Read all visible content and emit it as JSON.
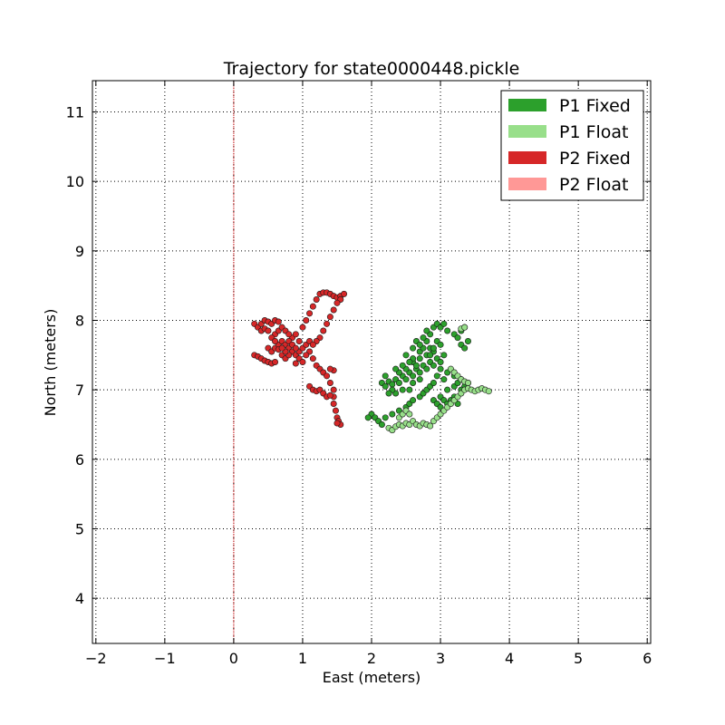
{
  "chart_data": {
    "type": "scatter",
    "title": "Trajectory for state0000448.pickle",
    "xlabel": "East (meters)",
    "ylabel": "North (meters)",
    "xlim": [
      -2.05,
      6.05
    ],
    "ylim": [
      3.35,
      11.45
    ],
    "xticks": [
      -2,
      -1,
      0,
      1,
      2,
      3,
      4,
      5,
      6
    ],
    "yticks": [
      4,
      5,
      6,
      7,
      8,
      9,
      10,
      11
    ],
    "grid": true,
    "legend_position": "top-right",
    "reference_line": {
      "axis": "x",
      "value": 0,
      "color": "#d62728"
    },
    "series": [
      {
        "name": "P1 Fixed",
        "color": "#2ca02c",
        "points": [
          [
            2.15,
            7.1
          ],
          [
            2.2,
            7.05
          ],
          [
            2.25,
            7.12
          ],
          [
            2.3,
            7.08
          ],
          [
            2.35,
            7.15
          ],
          [
            2.4,
            7.1
          ],
          [
            2.45,
            7.2
          ],
          [
            2.5,
            7.15
          ],
          [
            2.55,
            7.25
          ],
          [
            2.6,
            7.2
          ],
          [
            2.65,
            7.3
          ],
          [
            2.7,
            7.25
          ],
          [
            2.75,
            7.35
          ],
          [
            2.8,
            7.3
          ],
          [
            2.85,
            7.4
          ],
          [
            2.9,
            7.35
          ],
          [
            2.95,
            7.45
          ],
          [
            3.0,
            7.4
          ],
          [
            3.05,
            7.5
          ],
          [
            2.6,
            7.1
          ],
          [
            2.7,
            7.15
          ],
          [
            2.55,
            7.0
          ],
          [
            2.45,
            7.0
          ],
          [
            2.35,
            6.95
          ],
          [
            2.3,
            7.0
          ],
          [
            2.25,
            6.95
          ],
          [
            2.4,
            7.25
          ],
          [
            2.5,
            7.3
          ],
          [
            2.6,
            7.4
          ],
          [
            2.7,
            7.45
          ],
          [
            2.8,
            7.5
          ],
          [
            2.9,
            7.55
          ],
          [
            2.85,
            7.6
          ],
          [
            2.8,
            7.7
          ],
          [
            2.85,
            7.8
          ],
          [
            2.9,
            7.9
          ],
          [
            2.95,
            7.95
          ],
          [
            3.0,
            7.9
          ],
          [
            3.05,
            7.95
          ],
          [
            3.1,
            7.85
          ],
          [
            2.8,
            7.85
          ],
          [
            2.75,
            7.75
          ],
          [
            2.95,
            7.7
          ],
          [
            3.0,
            7.65
          ],
          [
            2.9,
            7.6
          ],
          [
            2.85,
            7.5
          ],
          [
            3.2,
            7.8
          ],
          [
            3.3,
            7.85
          ],
          [
            3.35,
            7.9
          ],
          [
            3.25,
            7.75
          ],
          [
            3.3,
            7.65
          ],
          [
            3.4,
            7.7
          ],
          [
            3.35,
            7.6
          ],
          [
            3.0,
            6.9
          ],
          [
            3.05,
            6.85
          ],
          [
            3.1,
            6.8
          ],
          [
            3.15,
            6.85
          ],
          [
            3.2,
            6.9
          ],
          [
            3.25,
            6.8
          ],
          [
            2.9,
            6.85
          ],
          [
            2.95,
            6.8
          ],
          [
            3.0,
            6.75
          ],
          [
            3.1,
            7.0
          ],
          [
            3.2,
            7.05
          ],
          [
            3.25,
            7.1
          ],
          [
            3.3,
            7.15
          ],
          [
            3.2,
            7.2
          ],
          [
            3.1,
            7.25
          ],
          [
            3.0,
            7.3
          ],
          [
            2.6,
            7.45
          ],
          [
            2.5,
            7.5
          ],
          [
            2.7,
            7.55
          ],
          [
            2.0,
            6.65
          ],
          [
            2.05,
            6.6
          ],
          [
            2.1,
            6.55
          ],
          [
            2.15,
            6.5
          ],
          [
            1.95,
            6.6
          ],
          [
            2.2,
            6.6
          ],
          [
            2.3,
            6.65
          ],
          [
            2.4,
            6.7
          ],
          [
            2.5,
            6.75
          ],
          [
            2.55,
            6.8
          ],
          [
            2.6,
            6.85
          ],
          [
            2.7,
            6.9
          ],
          [
            2.75,
            6.95
          ],
          [
            2.8,
            7.0
          ],
          [
            2.85,
            7.05
          ],
          [
            2.65,
            7.35
          ],
          [
            2.55,
            7.4
          ],
          [
            2.45,
            7.35
          ],
          [
            2.35,
            7.3
          ],
          [
            2.2,
            7.2
          ],
          [
            2.75,
            7.6
          ],
          [
            3.35,
            7.05
          ],
          [
            3.4,
            7.1
          ],
          [
            3.3,
            7.0
          ],
          [
            2.6,
            7.6
          ],
          [
            2.65,
            7.7
          ],
          [
            2.7,
            7.65
          ],
          [
            2.95,
            7.2
          ],
          [
            3.05,
            7.15
          ],
          [
            2.9,
            7.1
          ]
        ]
      },
      {
        "name": "P1 Float",
        "color": "#98df8a",
        "points": [
          [
            2.25,
            6.45
          ],
          [
            2.3,
            6.42
          ],
          [
            2.35,
            6.47
          ],
          [
            2.4,
            6.5
          ],
          [
            2.45,
            6.48
          ],
          [
            2.5,
            6.52
          ],
          [
            2.55,
            6.5
          ],
          [
            2.6,
            6.55
          ],
          [
            2.65,
            6.5
          ],
          [
            2.7,
            6.48
          ],
          [
            2.75,
            6.52
          ],
          [
            2.8,
            6.5
          ],
          [
            2.85,
            6.48
          ],
          [
            2.9,
            6.55
          ],
          [
            2.95,
            6.6
          ],
          [
            3.0,
            6.65
          ],
          [
            3.05,
            6.7
          ],
          [
            3.1,
            6.75
          ],
          [
            3.15,
            6.8
          ],
          [
            3.2,
            6.85
          ],
          [
            3.25,
            6.9
          ],
          [
            3.3,
            6.95
          ],
          [
            3.35,
            7.0
          ],
          [
            3.4,
            7.02
          ],
          [
            3.45,
            7.0
          ],
          [
            3.5,
            6.98
          ],
          [
            3.55,
            7.0
          ],
          [
            3.6,
            7.02
          ],
          [
            3.65,
            7.0
          ],
          [
            3.7,
            6.98
          ],
          [
            3.15,
            7.3
          ],
          [
            3.2,
            7.25
          ],
          [
            3.25,
            7.2
          ],
          [
            3.3,
            7.15
          ],
          [
            3.35,
            7.12
          ],
          [
            3.4,
            7.1
          ],
          [
            2.4,
            6.6
          ],
          [
            2.45,
            6.65
          ],
          [
            2.5,
            6.7
          ],
          [
            2.55,
            6.65
          ],
          [
            3.3,
            7.88
          ],
          [
            3.35,
            7.9
          ]
        ]
      },
      {
        "name": "P2 Fixed",
        "color": "#d62728",
        "points": [
          [
            0.3,
            7.95
          ],
          [
            0.35,
            7.9
          ],
          [
            0.4,
            7.95
          ],
          [
            0.45,
            8.0
          ],
          [
            0.5,
            7.98
          ],
          [
            0.55,
            7.95
          ],
          [
            0.6,
            8.0
          ],
          [
            0.65,
            7.98
          ],
          [
            0.5,
            7.6
          ],
          [
            0.55,
            7.55
          ],
          [
            0.6,
            7.6
          ],
          [
            0.65,
            7.65
          ],
          [
            0.7,
            7.7
          ],
          [
            0.75,
            7.65
          ],
          [
            0.8,
            7.6
          ],
          [
            0.85,
            7.55
          ],
          [
            0.9,
            7.5
          ],
          [
            0.95,
            7.55
          ],
          [
            1.0,
            7.6
          ],
          [
            1.05,
            7.65
          ],
          [
            1.1,
            7.7
          ],
          [
            0.7,
            7.5
          ],
          [
            0.75,
            7.45
          ],
          [
            0.8,
            7.5
          ],
          [
            0.85,
            7.75
          ],
          [
            0.9,
            7.8
          ],
          [
            0.6,
            7.8
          ],
          [
            0.65,
            7.85
          ],
          [
            0.55,
            7.75
          ],
          [
            0.7,
            7.9
          ],
          [
            0.75,
            7.85
          ],
          [
            0.8,
            7.7
          ],
          [
            0.3,
            7.5
          ],
          [
            0.35,
            7.48
          ],
          [
            0.4,
            7.45
          ],
          [
            0.45,
            7.42
          ],
          [
            0.5,
            7.4
          ],
          [
            0.55,
            7.38
          ],
          [
            0.6,
            7.4
          ],
          [
            0.95,
            7.45
          ],
          [
            1.0,
            7.4
          ],
          [
            0.9,
            7.38
          ],
          [
            1.0,
            7.9
          ],
          [
            1.05,
            8.0
          ],
          [
            1.1,
            8.1
          ],
          [
            1.15,
            8.2
          ],
          [
            1.2,
            8.3
          ],
          [
            1.25,
            8.38
          ],
          [
            1.3,
            8.4
          ],
          [
            1.35,
            8.4
          ],
          [
            1.4,
            8.38
          ],
          [
            1.45,
            8.35
          ],
          [
            1.5,
            8.33
          ],
          [
            1.55,
            8.35
          ],
          [
            1.6,
            8.38
          ],
          [
            1.55,
            8.3
          ],
          [
            1.5,
            8.25
          ],
          [
            1.45,
            8.15
          ],
          [
            1.4,
            8.05
          ],
          [
            1.35,
            7.95
          ],
          [
            1.3,
            7.85
          ],
          [
            1.25,
            7.75
          ],
          [
            1.2,
            7.7
          ],
          [
            1.15,
            7.65
          ],
          [
            1.1,
            7.55
          ],
          [
            1.15,
            7.45
          ],
          [
            1.2,
            7.35
          ],
          [
            1.25,
            7.3
          ],
          [
            1.3,
            7.25
          ],
          [
            1.35,
            7.2
          ],
          [
            1.4,
            7.1
          ],
          [
            1.45,
            7.0
          ],
          [
            1.45,
            6.9
          ],
          [
            1.45,
            6.8
          ],
          [
            1.48,
            6.7
          ],
          [
            1.5,
            6.6
          ],
          [
            1.52,
            6.55
          ],
          [
            1.55,
            6.5
          ],
          [
            1.5,
            6.52
          ],
          [
            1.1,
            7.05
          ],
          [
            1.15,
            7.0
          ],
          [
            1.2,
            6.98
          ],
          [
            1.25,
            7.0
          ],
          [
            1.3,
            6.95
          ],
          [
            1.35,
            6.9
          ],
          [
            1.4,
            6.92
          ],
          [
            1.45,
            7.28
          ],
          [
            1.4,
            7.3
          ],
          [
            0.4,
            7.85
          ],
          [
            0.45,
            7.88
          ],
          [
            0.5,
            7.85
          ],
          [
            0.6,
            7.7
          ],
          [
            0.65,
            7.58
          ],
          [
            0.85,
            7.65
          ],
          [
            0.95,
            7.7
          ],
          [
            1.05,
            7.5
          ],
          [
            0.75,
            7.55
          ],
          [
            0.9,
            7.6
          ],
          [
            0.8,
            7.8
          ],
          [
            0.7,
            7.6
          ]
        ]
      },
      {
        "name": "P2 Float",
        "color": "#ff9896",
        "points": []
      }
    ]
  }
}
